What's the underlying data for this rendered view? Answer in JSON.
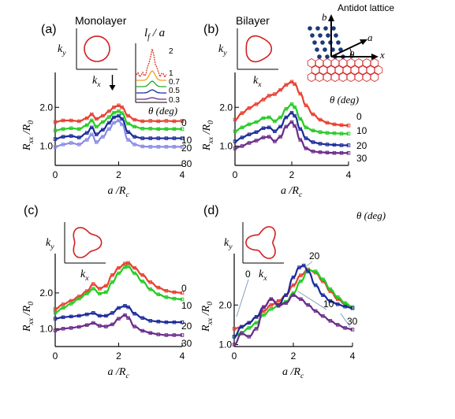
{
  "common": {
    "xlabel": "a /R",
    "xlabel_sub": "c",
    "ylabel": "R",
    "ylabel_sub": "xx",
    "ylabel_tail": "/R",
    "ylabel_tail_sub": "0",
    "theta_label": "θ (deg)",
    "ky": "k",
    "ky_sub": "y",
    "kx": "k",
    "kx_sub": "x"
  },
  "inset_lf": {
    "title": "l",
    "title_sub": "f",
    "title_tail": "/ a",
    "curves": [
      {
        "label": "2",
        "color": "#e03a2a"
      },
      {
        "label": "1",
        "color": "#f0a020"
      },
      {
        "label": "0.7",
        "color": "#22aa22"
      },
      {
        "label": "0.5",
        "color": "#1a2a9a"
      },
      {
        "label": "0.3",
        "color": "#6a2a8a"
      }
    ]
  },
  "antidot": {
    "title": "Antidot lattice",
    "b": "b",
    "a": "a",
    "theta": "θ",
    "x": "x"
  },
  "chart_data": [
    {
      "panel": "(a)",
      "type": "line",
      "inset_title": "Monolayer",
      "xlim": [
        0,
        4
      ],
      "xticks": [
        0,
        2,
        4
      ],
      "yticks": [
        1.0,
        2.0
      ],
      "ylim": [
        0.5,
        2.9
      ],
      "arrow_x": 2.0,
      "series": [
        {
          "name": "0",
          "color": "#e84030",
          "x": [
            0,
            0.25,
            0.5,
            0.75,
            1,
            1.15,
            1.3,
            1.5,
            1.7,
            1.85,
            2,
            2.1,
            2.3,
            2.5,
            2.75,
            3,
            3.25,
            3.5,
            3.75,
            4
          ],
          "y": [
            1.62,
            1.66,
            1.66,
            1.64,
            1.72,
            1.82,
            1.7,
            1.78,
            1.9,
            2.0,
            2.05,
            2.0,
            1.78,
            1.68,
            1.64,
            1.65,
            1.64,
            1.65,
            1.64,
            1.65
          ]
        },
        {
          "name": "10",
          "color": "#22cc22",
          "x": [
            0,
            0.25,
            0.5,
            0.75,
            1,
            1.15,
            1.3,
            1.5,
            1.7,
            1.85,
            2,
            2.1,
            2.3,
            2.5,
            2.75,
            3,
            3.25,
            3.5,
            3.75,
            4
          ],
          "y": [
            1.4,
            1.44,
            1.46,
            1.44,
            1.54,
            1.66,
            1.5,
            1.62,
            1.75,
            1.86,
            1.9,
            1.85,
            1.58,
            1.5,
            1.45,
            1.45,
            1.44,
            1.44,
            1.44,
            1.44
          ]
        },
        {
          "name": "20",
          "color": "#1a2a9a",
          "x": [
            0,
            0.25,
            0.5,
            0.75,
            1,
            1.15,
            1.3,
            1.5,
            1.7,
            1.85,
            2,
            2.1,
            2.3,
            2.5,
            2.75,
            3,
            3.25,
            3.5,
            3.75,
            4
          ],
          "y": [
            1.18,
            1.24,
            1.26,
            1.22,
            1.34,
            1.48,
            1.3,
            1.42,
            1.6,
            1.74,
            1.78,
            1.7,
            1.36,
            1.24,
            1.2,
            1.2,
            1.2,
            1.2,
            1.2,
            1.2
          ]
        },
        {
          "name": "30",
          "color": "#8a8ae8",
          "x": [
            0,
            0.25,
            0.5,
            0.75,
            1,
            1.15,
            1.3,
            1.5,
            1.7,
            1.85,
            2,
            2.1,
            2.3,
            2.5,
            2.75,
            3,
            3.25,
            3.5,
            3.75,
            4
          ],
          "y": [
            0.98,
            1.04,
            1.08,
            1.04,
            1.16,
            1.3,
            1.1,
            1.24,
            1.44,
            1.6,
            1.66,
            1.56,
            1.16,
            1.04,
            0.99,
            0.98,
            0.98,
            0.98,
            0.98,
            0.98
          ]
        }
      ]
    },
    {
      "panel": "(b)",
      "type": "line",
      "inset_title": "Bilayer",
      "xlim": [
        0,
        4
      ],
      "xticks": [
        0,
        2,
        4
      ],
      "yticks": [
        1.0,
        2.0
      ],
      "ylim": [
        0.5,
        2.9
      ],
      "series": [
        {
          "name": "0",
          "color": "#e84030",
          "x": [
            0,
            0.25,
            0.5,
            0.75,
            1,
            1.2,
            1.4,
            1.6,
            1.8,
            2,
            2.1,
            2.3,
            2.5,
            2.75,
            3,
            3.25,
            3.5,
            3.75,
            4
          ],
          "y": [
            1.68,
            1.85,
            1.98,
            2.08,
            2.2,
            2.3,
            2.34,
            2.45,
            2.58,
            2.66,
            2.6,
            2.35,
            2.05,
            1.82,
            1.68,
            1.6,
            1.56,
            1.54,
            1.53
          ]
        },
        {
          "name": "10",
          "color": "#22cc22",
          "x": [
            0,
            0.25,
            0.5,
            0.75,
            1,
            1.2,
            1.4,
            1.6,
            1.8,
            2,
            2.1,
            2.3,
            2.5,
            2.75,
            3,
            3.25,
            3.5,
            3.75,
            4
          ],
          "y": [
            1.38,
            1.48,
            1.56,
            1.62,
            1.72,
            1.74,
            1.64,
            1.74,
            1.96,
            2.08,
            2.0,
            1.7,
            1.48,
            1.4,
            1.36,
            1.34,
            1.33,
            1.32,
            1.32
          ]
        },
        {
          "name": "20",
          "color": "#1a2a9a",
          "x": [
            0,
            0.25,
            0.5,
            0.75,
            1,
            1.2,
            1.4,
            1.6,
            1.8,
            2,
            2.1,
            2.3,
            2.5,
            2.75,
            3,
            3.25,
            3.5,
            3.75,
            4
          ],
          "y": [
            1.12,
            1.22,
            1.3,
            1.36,
            1.46,
            1.48,
            1.38,
            1.5,
            1.74,
            1.86,
            1.78,
            1.44,
            1.2,
            1.1,
            1.06,
            1.04,
            1.03,
            1.02,
            1.02
          ]
        },
        {
          "name": "30",
          "color": "#6a2a8a",
          "x": [
            0,
            0.25,
            0.5,
            0.75,
            1,
            1.2,
            1.4,
            1.6,
            1.8,
            2,
            2.1,
            2.3,
            2.5,
            2.75,
            3,
            3.25,
            3.5,
            3.75,
            4
          ],
          "y": [
            0.94,
            1.0,
            1.08,
            1.14,
            1.22,
            1.24,
            1.12,
            1.24,
            1.5,
            1.62,
            1.52,
            1.16,
            0.94,
            0.86,
            0.84,
            0.83,
            0.82,
            0.82,
            0.82
          ]
        }
      ]
    },
    {
      "panel": "(c)",
      "type": "line",
      "inset_title": "",
      "xlim": [
        0,
        4
      ],
      "xticks": [
        0,
        2,
        4
      ],
      "yticks": [
        1.0,
        2.0
      ],
      "ylim": [
        0.5,
        3.1
      ],
      "series": [
        {
          "name": "0",
          "color": "#e84030",
          "x": [
            0,
            0.25,
            0.5,
            0.75,
            1,
            1.2,
            1.4,
            1.6,
            1.8,
            2,
            2.2,
            2.3,
            2.5,
            2.75,
            3,
            3.25,
            3.5,
            3.75,
            4
          ],
          "y": [
            1.55,
            1.68,
            1.78,
            1.9,
            2.05,
            2.25,
            2.12,
            2.2,
            2.5,
            2.7,
            2.82,
            2.84,
            2.7,
            2.5,
            2.3,
            2.15,
            2.06,
            2.02,
            2.0
          ]
        },
        {
          "name": "10",
          "color": "#22cc22",
          "x": [
            0,
            0.25,
            0.5,
            0.75,
            1,
            1.2,
            1.4,
            1.6,
            1.8,
            2,
            2.2,
            2.3,
            2.5,
            2.75,
            3,
            3.25,
            3.5,
            3.75,
            4
          ],
          "y": [
            1.45,
            1.58,
            1.7,
            1.84,
            1.98,
            2.12,
            1.98,
            2.02,
            2.3,
            2.55,
            2.72,
            2.74,
            2.55,
            2.32,
            2.1,
            1.96,
            1.88,
            1.84,
            1.82
          ]
        },
        {
          "name": "20",
          "color": "#1a2a9a",
          "x": [
            0,
            0.25,
            0.5,
            0.75,
            1,
            1.2,
            1.4,
            1.6,
            1.8,
            2,
            2.2,
            2.3,
            2.5,
            2.75,
            3,
            3.25,
            3.5,
            3.75,
            4
          ],
          "y": [
            1.28,
            1.32,
            1.34,
            1.36,
            1.4,
            1.44,
            1.36,
            1.36,
            1.44,
            1.58,
            1.64,
            1.6,
            1.42,
            1.3,
            1.22,
            1.2,
            1.18,
            1.18,
            1.18
          ]
        },
        {
          "name": "30",
          "color": "#6a2a8a",
          "x": [
            0,
            0.25,
            0.5,
            0.75,
            1,
            1.2,
            1.4,
            1.6,
            1.8,
            2,
            2.2,
            2.3,
            2.5,
            2.75,
            3,
            3.25,
            3.5,
            3.75,
            4
          ],
          "y": [
            0.95,
            1.0,
            1.02,
            1.05,
            1.1,
            1.16,
            1.08,
            1.06,
            1.12,
            1.28,
            1.38,
            1.3,
            1.06,
            0.94,
            0.88,
            0.84,
            0.82,
            0.82,
            0.82
          ]
        }
      ]
    },
    {
      "panel": "(d)",
      "type": "line",
      "inset_title": "",
      "xlim": [
        0,
        4
      ],
      "xticks": [
        0,
        2,
        4
      ],
      "yticks": [
        1.0,
        2.0
      ],
      "ylim": [
        0.95,
        3.3
      ],
      "series": [
        {
          "name": "0",
          "color": "#e84030",
          "x": [
            0,
            0.25,
            0.5,
            0.75,
            1,
            1.25,
            1.5,
            1.75,
            2,
            2.25,
            2.5,
            2.75,
            3,
            3.25,
            3.5,
            3.75,
            4
          ],
          "y": [
            1.4,
            1.45,
            1.55,
            1.7,
            1.85,
            2.0,
            2.1,
            2.25,
            2.5,
            2.75,
            2.9,
            2.82,
            2.6,
            2.35,
            2.15,
            2.02,
            1.92
          ]
        },
        {
          "name": "10",
          "color": "#22cc22",
          "x": [
            0,
            0.25,
            0.5,
            0.75,
            1,
            1.25,
            1.5,
            1.75,
            2,
            2.25,
            2.5,
            2.75,
            3,
            3.25,
            3.5,
            3.75,
            4
          ],
          "y": [
            1.2,
            1.3,
            1.42,
            1.55,
            1.75,
            1.9,
            1.98,
            2.08,
            2.3,
            2.6,
            2.88,
            2.85,
            2.65,
            2.4,
            2.2,
            2.05,
            1.95
          ]
        },
        {
          "name": "20",
          "color": "#1a2a9a",
          "x": [
            0,
            0.25,
            0.5,
            0.75,
            1,
            1.25,
            1.5,
            1.75,
            2,
            2.2,
            2.35,
            2.5,
            2.75,
            3,
            3.25,
            3.5,
            3.75,
            4
          ],
          "y": [
            1.2,
            1.45,
            1.55,
            1.7,
            1.95,
            2.15,
            2.0,
            2.25,
            2.7,
            2.95,
            3.0,
            2.85,
            2.5,
            2.25,
            2.1,
            2.02,
            1.96,
            1.92
          ]
        },
        {
          "name": "30",
          "color": "#6a2a8a",
          "x": [
            0,
            0.25,
            0.5,
            0.75,
            1,
            1.25,
            1.5,
            1.75,
            2,
            2.25,
            2.5,
            2.75,
            3,
            3.25,
            3.5,
            3.75,
            4
          ],
          "y": [
            1.0,
            1.28,
            1.2,
            1.4,
            1.95,
            2.15,
            1.98,
            2.05,
            2.25,
            2.15,
            2.0,
            1.85,
            1.72,
            1.6,
            1.5,
            1.42,
            1.38
          ]
        }
      ]
    }
  ]
}
